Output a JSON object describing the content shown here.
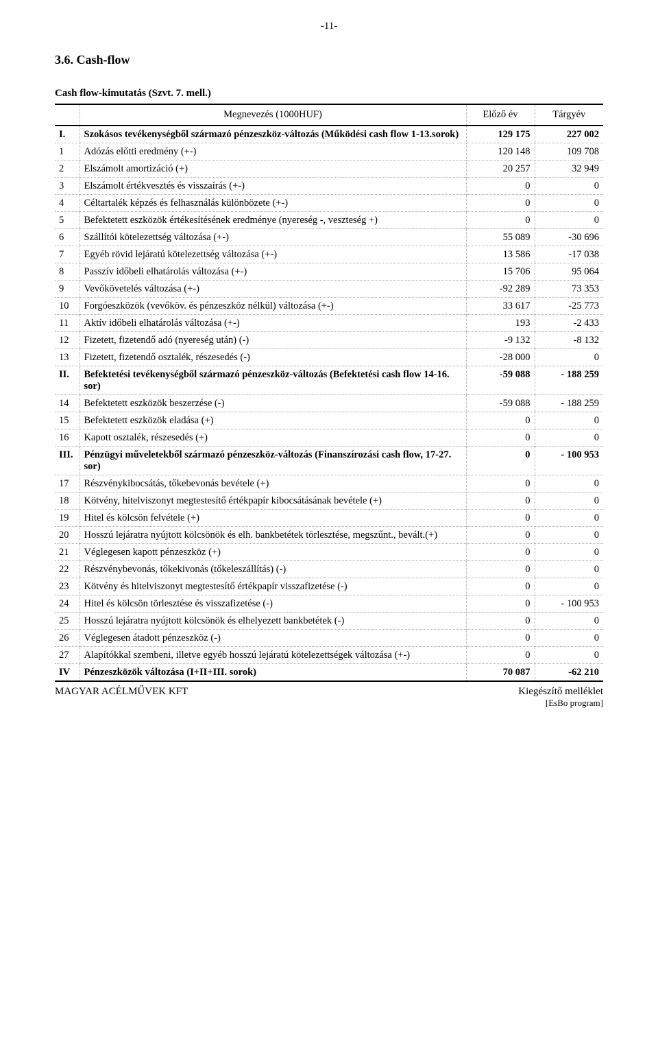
{
  "page_number": "-11-",
  "section_heading": "3.6. Cash-flow",
  "table_title": "Cash flow-kimutatás (Szvt. 7. mell.)",
  "headers": {
    "name": "Megnevezés (1000HUF)",
    "prev": "Előző év",
    "curr": "Tárgyév"
  },
  "rows": [
    {
      "n": "I.",
      "label": "Szokásos tevékenységből származó pénzeszköz-változás (Működési cash flow 1-13.sorok)",
      "p": "129 175",
      "c": "227 002",
      "section": true
    },
    {
      "n": "1",
      "label": "Adózás előtti eredmény (+-)",
      "p": "120 148",
      "c": "109 708"
    },
    {
      "n": "2",
      "label": "Elszámolt amortizáció (+)",
      "p": "20 257",
      "c": "32 949"
    },
    {
      "n": "3",
      "label": "Elszámolt értékvesztés és visszaírás (+-)",
      "p": "0",
      "c": "0"
    },
    {
      "n": "4",
      "label": "Céltartalék képzés és felhasználás különbözete (+-)",
      "p": "0",
      "c": "0"
    },
    {
      "n": "5",
      "label": "Befektetett eszközök értékesítésének eredménye (nyereség -, veszteség +)",
      "p": "0",
      "c": "0"
    },
    {
      "n": "6",
      "label": "Szállítói kötelezettség változása (+-)",
      "p": "55 089",
      "c": "-30 696"
    },
    {
      "n": "7",
      "label": "Egyéb rövid lejáratú kötelezettség változása (+-)",
      "p": "13 586",
      "c": "-17 038"
    },
    {
      "n": "8",
      "label": "Passzív időbeli elhatárolás változása (+-)",
      "p": "15 706",
      "c": "95 064"
    },
    {
      "n": "9",
      "label": "Vevőkövetelés változása (+-)",
      "p": "-92 289",
      "c": "73 353"
    },
    {
      "n": "10",
      "label": "Forgóeszközök (vevőköv. és pénzeszköz nélkül) változása (+-)",
      "p": "33 617",
      "c": "-25 773"
    },
    {
      "n": "11",
      "label": "Aktív időbeli elhatárolás változása (+-)",
      "p": "193",
      "c": "-2 433"
    },
    {
      "n": "12",
      "label": "Fizetett, fizetendő adó (nyereség után) (-)",
      "p": "-9 132",
      "c": "-8 132"
    },
    {
      "n": "13",
      "label": "Fizetett, fizetendő osztalék, részesedés (-)",
      "p": "-28 000",
      "c": "0"
    },
    {
      "n": "II.",
      "label": "Befektetési tevékenységből származó pénzeszköz-változás (Befektetési cash flow 14-16. sor)",
      "p": "-59 088",
      "c": "- 188 259",
      "section": true
    },
    {
      "n": "14",
      "label": "Befektetett eszközök beszerzése (-)",
      "p": "-59 088",
      "c": "- 188 259"
    },
    {
      "n": "15",
      "label": "Befektetett eszközök eladása (+)",
      "p": "0",
      "c": "0"
    },
    {
      "n": "16",
      "label": "Kapott osztalék, részesedés (+)",
      "p": "0",
      "c": "0"
    },
    {
      "n": "III.",
      "label": "Pénzügyi műveletekből származó pénzeszköz-változás (Finanszírozási cash flow, 17-27. sor)",
      "p": "0",
      "c": "- 100 953",
      "section": true
    },
    {
      "n": "17",
      "label": "Részvénykibocsátás, tőkebevonás bevétele (+)",
      "p": "0",
      "c": "0"
    },
    {
      "n": "18",
      "label": "Kötvény, hitelviszonyt megtestesítő értékpapír kibocsátásának bevétele (+)",
      "p": "0",
      "c": "0"
    },
    {
      "n": "19",
      "label": "Hitel és kölcsön felvétele (+)",
      "p": "0",
      "c": "0"
    },
    {
      "n": "20",
      "label": "Hosszú lejáratra nyújtott kölcsönök és elh. bankbetétek törlesztése, megszűnt., bevált.(+)",
      "p": "0",
      "c": "0"
    },
    {
      "n": "21",
      "label": "Véglegesen kapott pénzeszköz (+)",
      "p": "0",
      "c": "0"
    },
    {
      "n": "22",
      "label": "Részvénybevonás, tőkekivonás (tőkeleszállítás) (-)",
      "p": "0",
      "c": "0"
    },
    {
      "n": "23",
      "label": "Kötvény és hitelviszonyt megtestesítő értékpapír visszafizetése (-)",
      "p": "0",
      "c": "0"
    },
    {
      "n": "24",
      "label": "Hitel és kölcsön törlesztése és visszafizetése (-)",
      "p": "0",
      "c": "- 100 953"
    },
    {
      "n": "25",
      "label": "Hosszú lejáratra nyújtott kölcsönök és elhelyezett bankbetétek (-)",
      "p": "0",
      "c": "0"
    },
    {
      "n": "26",
      "label": "Véglegesen átadott pénzeszköz (-)",
      "p": "0",
      "c": "0"
    },
    {
      "n": "27",
      "label": "Alapítókkal szembeni, illetve egyéb hosszú lejáratú kötelezettségek változása (+-)",
      "p": "0",
      "c": "0"
    },
    {
      "n": "IV",
      "label": "Pénzeszközök változása (I+II+III. sorok)",
      "p": "70 087",
      "c": "-62 210",
      "section": true,
      "last": true
    }
  ],
  "footer": {
    "left": "MAGYAR ACÉLMŰVEK KFT",
    "right": "Kiegészítő melléklet",
    "right_sub": "[EsBo program]"
  }
}
